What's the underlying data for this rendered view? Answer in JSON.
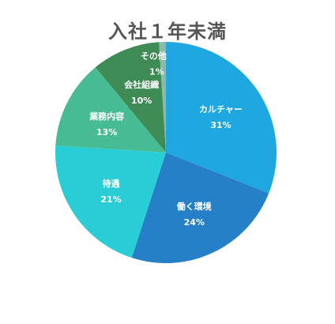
{
  "chart_data": {
    "type": "pie",
    "title": "入社１年未満",
    "slices": [
      {
        "label": "カルチャー",
        "value": 31,
        "display": "31%",
        "color": "#1ea7e0"
      },
      {
        "label": "働く環境",
        "value": 24,
        "display": "24%",
        "color": "#2680c8"
      },
      {
        "label": "待遇",
        "value": 21,
        "display": "21%",
        "color": "#28cdd6"
      },
      {
        "label": "業務内容",
        "value": 13,
        "display": "13%",
        "color": "#47bc94"
      },
      {
        "label": "会社組織",
        "value": 10,
        "display": "10%",
        "color": "#3e8b55"
      },
      {
        "label": "その他",
        "value": 1,
        "display": "1%",
        "color": "#8cb9ae"
      }
    ],
    "legend": "none"
  }
}
